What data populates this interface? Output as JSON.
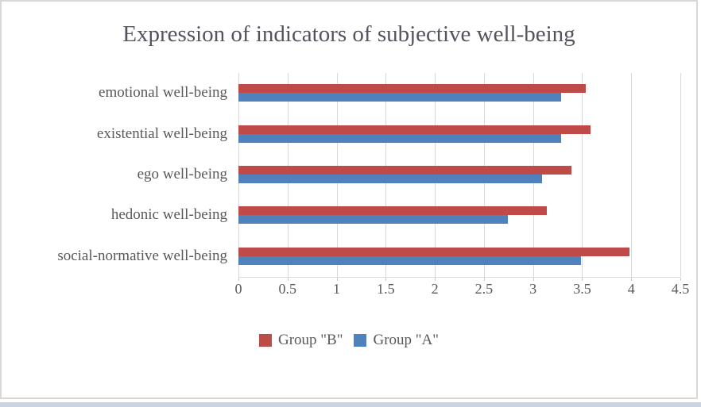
{
  "chart_data": {
    "type": "bar",
    "orientation": "horizontal",
    "title": "Expression of indicators of subjective well-being",
    "categories": [
      "emotional well-being",
      "existential well-being",
      "ego well-being",
      "hedonic well-being",
      "social-normative well-being"
    ],
    "series": [
      {
        "name": "Group \"B\"",
        "color": "#BE4B48",
        "values": [
          3.55,
          3.6,
          3.4,
          3.15,
          4.0
        ]
      },
      {
        "name": "Group \"A\"",
        "color": "#4F81BD",
        "values": [
          3.3,
          3.3,
          3.1,
          2.75,
          3.5
        ]
      }
    ],
    "xlim": [
      0,
      4.5
    ],
    "xticks": [
      "0",
      "0.5",
      "1",
      "1.5",
      "2",
      "2.5",
      "3",
      "3.5",
      "4",
      "4.5"
    ],
    "grid": true,
    "legend_position": "bottom"
  },
  "colors": {
    "group_b_red": "#BE4B48",
    "group_a_blue": "#4F81BD",
    "gridline": "#D9D9D9",
    "text": "#595959",
    "title_text": "#54545E",
    "frame_border": "#D8D8D8"
  }
}
